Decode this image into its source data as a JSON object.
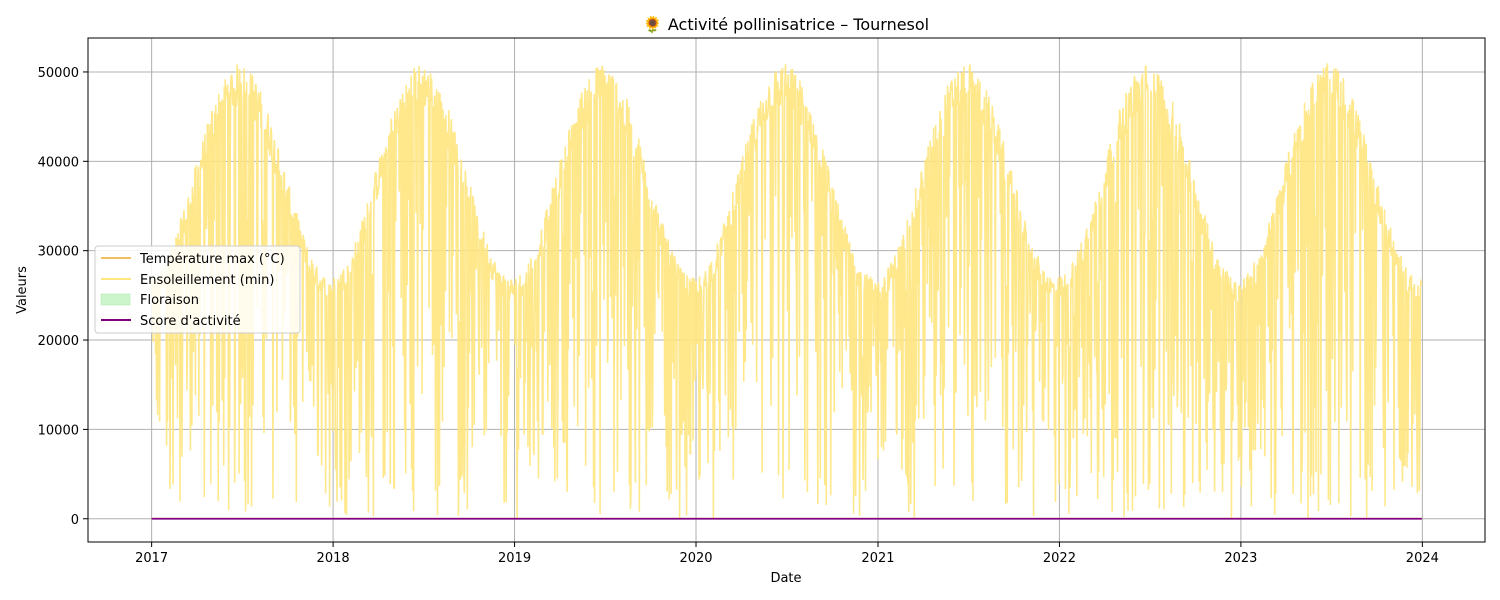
{
  "chart_data": {
    "type": "line",
    "title": "🌻 Activité pollinisatrice – Tournesol",
    "xlabel": "Date",
    "ylabel": "Valeurs",
    "x_range": [
      "2016-08-26",
      "2024-05-06"
    ],
    "ylim": [
      -2600,
      53800
    ],
    "x_ticks": [
      "2017",
      "2018",
      "2019",
      "2020",
      "2021",
      "2022",
      "2023",
      "2024"
    ],
    "y_ticks": [
      "0",
      "10000",
      "20000",
      "30000",
      "40000",
      "50000"
    ],
    "grid": true,
    "legend_position": "center-left",
    "legend": [
      {
        "label": "Température max (°C)",
        "kind": "line",
        "color": "#f0c060"
      },
      {
        "label": "Ensoleillement (min)",
        "kind": "line",
        "color": "#ffe680"
      },
      {
        "label": "Floraison",
        "kind": "patch",
        "color": "#ccf5cc"
      },
      {
        "label": "Score d'activité",
        "kind": "line",
        "color": "#800080"
      }
    ],
    "series": [
      {
        "name": "Ensoleillement (min)",
        "color": "#ffe680",
        "x_start": "2017-01-01",
        "x_end": "2023-12-31",
        "seasonal_envelope": {
          "minimum_around": "January",
          "maximum_around": "late June",
          "approx_min": 27000,
          "approx_max": 51000,
          "daily_drops_to": 0
        }
      },
      {
        "name": "Température max (°C)",
        "color": "#f0c060",
        "x": [
          "2017-01-01",
          "2023-12-31"
        ],
        "values": [
          10,
          10
        ]
      },
      {
        "name": "Score d'activité",
        "color": "#800080",
        "x": [
          "2017-01-01",
          "2023-12-31"
        ],
        "values": [
          0,
          0
        ]
      }
    ]
  }
}
